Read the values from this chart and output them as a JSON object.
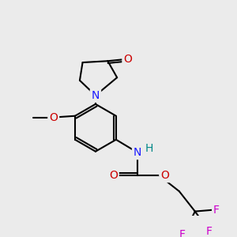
{
  "bg_color": "#ebebeb",
  "bond_color": "#000000",
  "bond_width": 1.5,
  "atom_colors": {
    "N": "#1a1aff",
    "O": "#cc0000",
    "F": "#cc00cc",
    "H": "#008888",
    "C": "#000000"
  },
  "font_size": 10
}
